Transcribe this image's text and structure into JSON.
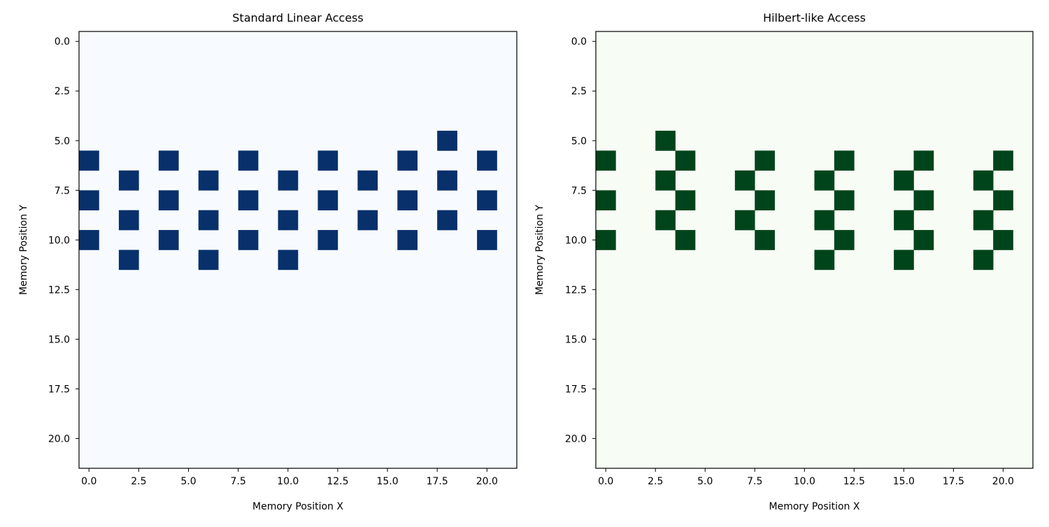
{
  "chart_data": [
    {
      "type": "heatmap",
      "title": "Standard Linear Access",
      "xlabel": "Memory Position X",
      "ylabel": "Memory Position Y",
      "xlim": [
        -0.5,
        21.5
      ],
      "ylim": [
        21.5,
        -0.5
      ],
      "y_inverted": true,
      "xticks": [
        "0.0",
        "2.5",
        "5.0",
        "7.5",
        "10.0",
        "12.5",
        "15.0",
        "17.5",
        "20.0"
      ],
      "yticks": [
        "0.0",
        "2.5",
        "5.0",
        "7.5",
        "10.0",
        "12.5",
        "15.0",
        "17.5",
        "20.0"
      ],
      "grid": false,
      "background_color": "#f7fbff",
      "cell_color": "#08306b",
      "cells": [
        [
          0,
          6
        ],
        [
          0,
          8
        ],
        [
          0,
          10
        ],
        [
          2,
          7
        ],
        [
          2,
          9
        ],
        [
          2,
          11
        ],
        [
          4,
          6
        ],
        [
          4,
          8
        ],
        [
          4,
          10
        ],
        [
          6,
          7
        ],
        [
          6,
          9
        ],
        [
          6,
          11
        ],
        [
          8,
          6
        ],
        [
          8,
          8
        ],
        [
          8,
          10
        ],
        [
          10,
          7
        ],
        [
          10,
          9
        ],
        [
          10,
          11
        ],
        [
          12,
          6
        ],
        [
          12,
          8
        ],
        [
          12,
          10
        ],
        [
          14,
          7
        ],
        [
          14,
          9
        ],
        [
          16,
          6
        ],
        [
          16,
          8
        ],
        [
          16,
          10
        ],
        [
          18,
          5
        ],
        [
          18,
          7
        ],
        [
          18,
          9
        ],
        [
          20,
          6
        ],
        [
          20,
          8
        ],
        [
          20,
          10
        ]
      ]
    },
    {
      "type": "heatmap",
      "title": "Hilbert-like Access",
      "xlabel": "Memory Position X",
      "ylabel": "Memory Position Y",
      "xlim": [
        -0.5,
        21.5
      ],
      "ylim": [
        21.5,
        -0.5
      ],
      "y_inverted": true,
      "xticks": [
        "0.0",
        "2.5",
        "5.0",
        "7.5",
        "10.0",
        "12.5",
        "15.0",
        "17.5",
        "20.0"
      ],
      "yticks": [
        "0.0",
        "2.5",
        "5.0",
        "7.5",
        "10.0",
        "12.5",
        "15.0",
        "17.5",
        "20.0"
      ],
      "grid": false,
      "background_color": "#f7fcf5",
      "cell_color": "#00441b",
      "cells": [
        [
          0,
          6
        ],
        [
          0,
          8
        ],
        [
          0,
          10
        ],
        [
          3,
          5
        ],
        [
          3,
          7
        ],
        [
          3,
          9
        ],
        [
          4,
          6
        ],
        [
          4,
          8
        ],
        [
          4,
          10
        ],
        [
          7,
          7
        ],
        [
          7,
          9
        ],
        [
          8,
          6
        ],
        [
          8,
          8
        ],
        [
          8,
          10
        ],
        [
          11,
          7
        ],
        [
          11,
          9
        ],
        [
          11,
          11
        ],
        [
          12,
          6
        ],
        [
          12,
          8
        ],
        [
          12,
          10
        ],
        [
          15,
          7
        ],
        [
          15,
          9
        ],
        [
          15,
          11
        ],
        [
          16,
          6
        ],
        [
          16,
          8
        ],
        [
          16,
          10
        ],
        [
          19,
          7
        ],
        [
          19,
          9
        ],
        [
          19,
          11
        ],
        [
          20,
          6
        ],
        [
          20,
          8
        ],
        [
          20,
          10
        ]
      ]
    }
  ]
}
